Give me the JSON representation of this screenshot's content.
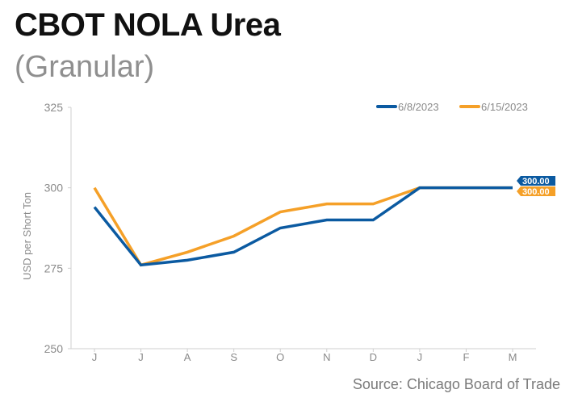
{
  "header": {
    "title": "CBOT NOLA Urea",
    "subtitle": "(Granular)"
  },
  "footer": {
    "source": "Source: Chicago Board of Trade"
  },
  "colors": {
    "series_1": "#0b5aa1",
    "series_2": "#f5a028",
    "axis_text": "#8a8a8a",
    "axis_line": "#cfcfcf"
  },
  "chart_data": {
    "type": "line",
    "title": "CBOT NOLA Urea",
    "subtitle": "(Granular)",
    "xlabel": "",
    "ylabel": "USD per Short Ton",
    "categories": [
      "J",
      "J",
      "A",
      "S",
      "O",
      "N",
      "D",
      "J",
      "F",
      "M"
    ],
    "ylim": [
      250,
      325
    ],
    "yticks": [
      250,
      275,
      300,
      325
    ],
    "grid": false,
    "legend_position": "top-right",
    "series": [
      {
        "name": "6/8/2023",
        "color": "#0b5aa1",
        "values": [
          294,
          276,
          277.5,
          280,
          287.5,
          290,
          290,
          300,
          300,
          300
        ],
        "end_label": "300.00"
      },
      {
        "name": "6/15/2023",
        "color": "#f5a028",
        "values": [
          300,
          276,
          280,
          285,
          292.5,
          295,
          295,
          300,
          300,
          300
        ],
        "end_label": "300.00"
      }
    ]
  }
}
